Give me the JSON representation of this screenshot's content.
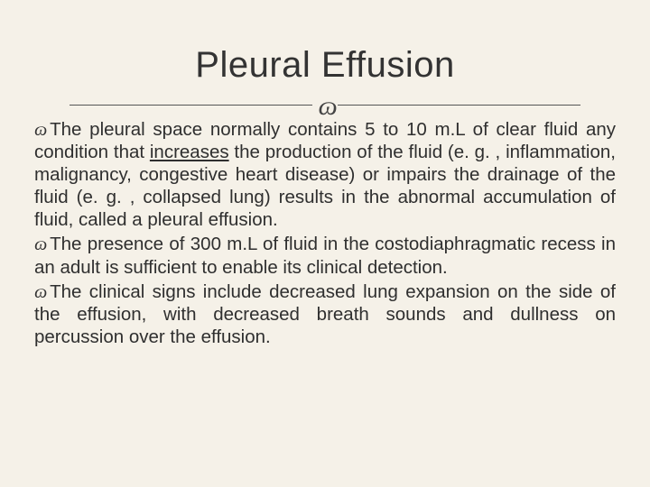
{
  "title": "Pleural Effusion",
  "ornament": "ɷ",
  "bullet_glyph": "ɷ",
  "paragraphs": [
    {
      "pre": "The pleural space normally contains 5 to 10 m.L of clear fluid any condition that ",
      "underlined": "increases",
      "post": " the production of the fluid (e. g. , inflammation, malignancy, congestive heart disease) or impairs the drainage of the fluid (e. g. , collapsed lung) results in the abnormal accumulation of fluid, called a pleural effusion."
    },
    {
      "pre": "The presence of 300 m.L of fluid in the costodiaphragmatic recess in an adult is sufficient to enable its clinical detection.",
      "underlined": "",
      "post": ""
    },
    {
      "pre": "The clinical signs include decreased lung expansion on the side of the effusion, with decreased breath sounds and dullness on percussion over the effusion.",
      "underlined": "",
      "post": ""
    }
  ],
  "colors": {
    "background": "#f5f1e8",
    "text": "#2f2f2f",
    "title": "#333",
    "divider": "#555"
  },
  "typography": {
    "title_fontsize": 40,
    "body_fontsize": 20.5,
    "body_lineheight": 1.22
  }
}
